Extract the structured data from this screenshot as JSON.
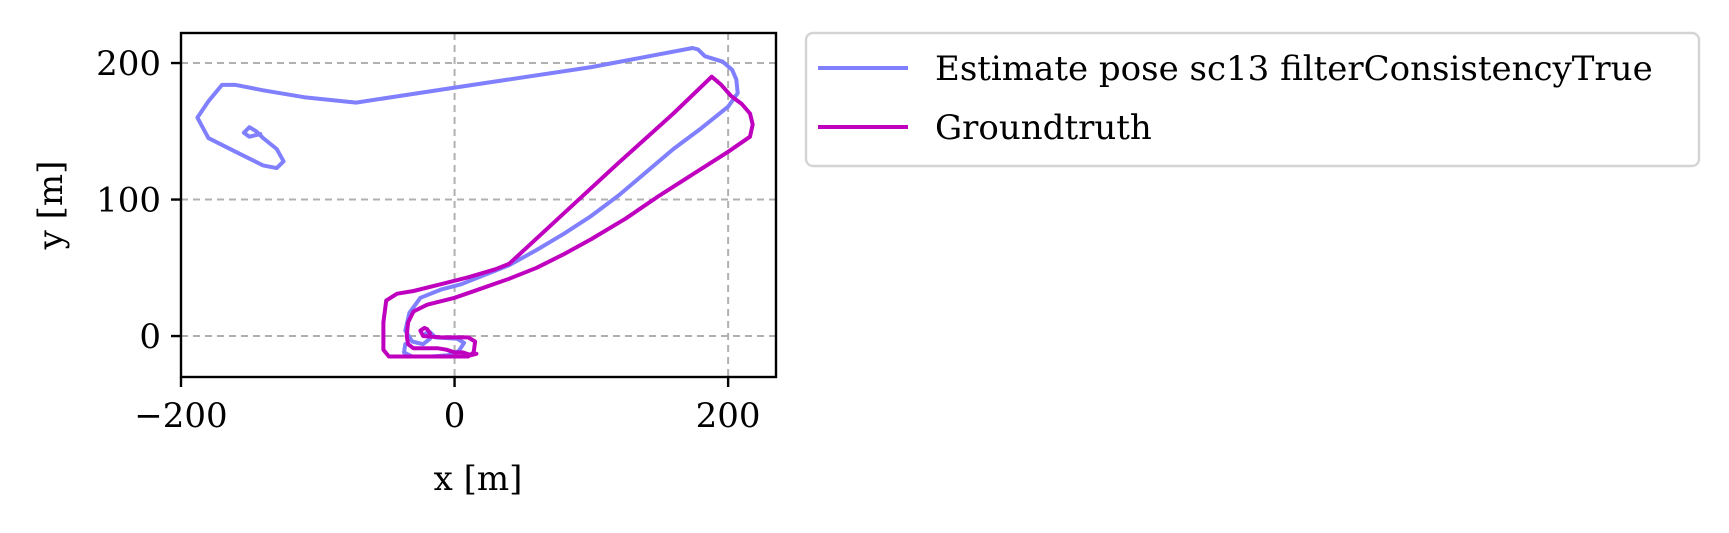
{
  "chart_data": {
    "type": "line",
    "title": "",
    "xlabel": "x [m]",
    "ylabel": "y [m]",
    "xlim": [
      -200,
      235
    ],
    "ylim": [
      -30,
      222
    ],
    "xticks": [
      -200,
      0,
      200
    ],
    "yticks": [
      0,
      100,
      200
    ],
    "xtick_labels": [
      "−200",
      "0",
      "200"
    ],
    "ytick_labels": [
      "0",
      "100",
      "200"
    ],
    "grid": true,
    "legend_position": "outside-right-top",
    "series": [
      {
        "name": "Estimate pose sc13 filterConsistencyTrue",
        "color": "#8080ff",
        "points": [
          [
            -36,
            -6
          ],
          [
            -37,
            -12
          ],
          [
            -31,
            -15
          ],
          [
            -17,
            -15
          ],
          [
            -5,
            -14
          ],
          [
            3,
            -11
          ],
          [
            7,
            -5
          ],
          [
            2,
            -2
          ],
          [
            -14,
            -1
          ],
          [
            -18,
            3
          ],
          [
            -21,
            2
          ],
          [
            -18,
            -2
          ],
          [
            -23,
            -6
          ],
          [
            -31,
            -4
          ],
          [
            -36,
            4
          ],
          [
            -33,
            17
          ],
          [
            -25,
            28
          ],
          [
            -10,
            34
          ],
          [
            5,
            38
          ],
          [
            25,
            46
          ],
          [
            40,
            52
          ],
          [
            60,
            63
          ],
          [
            80,
            75
          ],
          [
            100,
            88
          ],
          [
            120,
            103
          ],
          [
            140,
            120
          ],
          [
            160,
            137
          ],
          [
            180,
            152
          ],
          [
            200,
            168
          ],
          [
            207,
            178
          ],
          [
            206,
            188
          ],
          [
            203,
            195
          ],
          [
            196,
            201
          ],
          [
            183,
            205
          ],
          [
            178,
            210
          ],
          [
            174,
            211
          ],
          [
            100,
            197
          ],
          [
            0,
            182
          ],
          [
            -72,
            171
          ],
          [
            -110,
            175
          ],
          [
            -140,
            180
          ],
          [
            -160,
            184
          ],
          [
            -170,
            184
          ],
          [
            -180,
            172
          ],
          [
            -188,
            160
          ],
          [
            -180,
            145
          ],
          [
            -160,
            135
          ],
          [
            -140,
            125
          ],
          [
            -130,
            123
          ],
          [
            -125,
            128
          ],
          [
            -130,
            137
          ],
          [
            -140,
            145
          ],
          [
            -145,
            150
          ],
          [
            -150,
            153
          ],
          [
            -154,
            149
          ],
          [
            -150,
            146
          ],
          [
            -142,
            148
          ]
        ]
      },
      {
        "name": "Groundtruth",
        "color": "#bf00bf",
        "points": [
          [
            -18,
            2
          ],
          [
            -20,
            5
          ],
          [
            -22,
            6
          ],
          [
            -25,
            4
          ],
          [
            -23,
            0
          ],
          [
            -10,
            -1
          ],
          [
            10,
            -1
          ],
          [
            15,
            -4
          ],
          [
            14,
            -12
          ],
          [
            10,
            -15
          ],
          [
            -20,
            -15
          ],
          [
            -48,
            -15
          ],
          [
            -52,
            -10
          ],
          [
            -52,
            10
          ],
          [
            -50,
            26
          ],
          [
            -42,
            31
          ],
          [
            -30,
            33
          ],
          [
            -10,
            38
          ],
          [
            10,
            43
          ],
          [
            30,
            49
          ],
          [
            40,
            53
          ],
          [
            80,
            90
          ],
          [
            120,
            127
          ],
          [
            160,
            163
          ],
          [
            188,
            190
          ],
          [
            195,
            184
          ],
          [
            202,
            176
          ],
          [
            210,
            170
          ],
          [
            216,
            163
          ],
          [
            218,
            155
          ],
          [
            216,
            146
          ],
          [
            200,
            135
          ],
          [
            175,
            119
          ],
          [
            150,
            103
          ],
          [
            125,
            86
          ],
          [
            100,
            71
          ],
          [
            80,
            60
          ],
          [
            60,
            50
          ],
          [
            40,
            42
          ],
          [
            20,
            35
          ],
          [
            0,
            28
          ],
          [
            -20,
            23
          ],
          [
            -30,
            18
          ],
          [
            -34,
            10
          ],
          [
            -35,
            0
          ],
          [
            -34,
            -6
          ],
          [
            -30,
            -9
          ],
          [
            -22,
            -9
          ],
          [
            -12,
            -9
          ],
          [
            -6,
            -10
          ],
          [
            0,
            -12
          ],
          [
            6,
            -12
          ],
          [
            12,
            -14
          ],
          [
            16,
            -13
          ]
        ]
      }
    ]
  }
}
